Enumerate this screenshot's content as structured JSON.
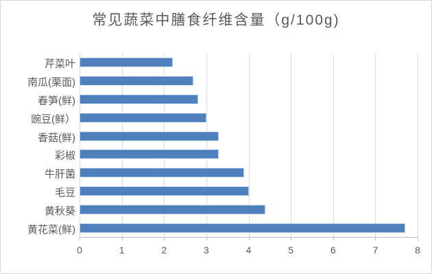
{
  "chart": {
    "title": "常见蔬菜中膳食纤维含量（g/100g)"
  },
  "chart_data": {
    "type": "bar",
    "orientation": "horizontal",
    "title": "常见蔬菜中膳食纤维含量（g/100g)",
    "categories": [
      "芹菜叶",
      "南瓜(栗面)",
      "春笋(鲜)",
      "豌豆(鲜）",
      "香菇(鲜)",
      "彩椒",
      "牛肝菌",
      "毛豆",
      "黄秋葵",
      "黄花菜(鲜)"
    ],
    "values": [
      2.2,
      2.7,
      2.8,
      3.0,
      3.3,
      3.3,
      3.9,
      4.0,
      4.4,
      7.7
    ],
    "xlabel": "",
    "ylabel": "",
    "xlim": [
      0,
      8
    ],
    "x_ticks": [
      0,
      1,
      2,
      3,
      4,
      5,
      6,
      7,
      8
    ],
    "grid": "vertical-only",
    "legend": "none",
    "colors": {
      "bar_fill": "#4e80bd",
      "bar_edge": "#bdd0e9",
      "gridline": "#d9d9d9",
      "axis_line": "#bfbfbf",
      "text": "#595959",
      "background": "#ffffff",
      "border": "#d9d9d9"
    }
  }
}
